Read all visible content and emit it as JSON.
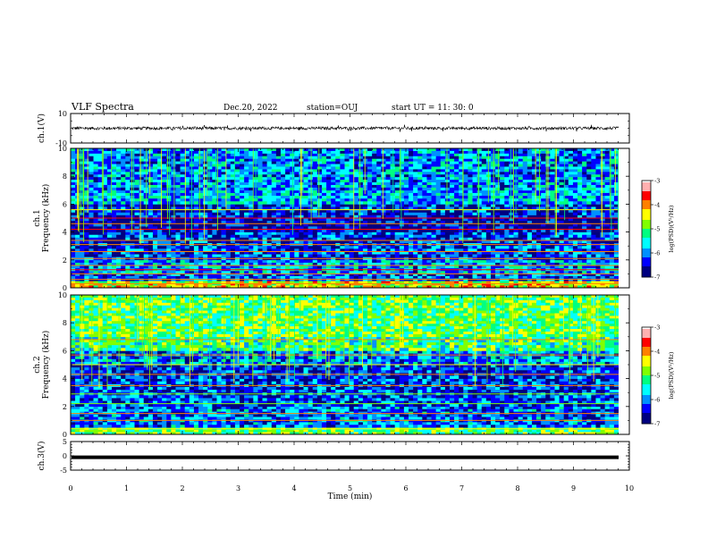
{
  "header": {
    "title": "VLF Spectra",
    "date": "Dec.20, 2022",
    "station": "station=OUJ",
    "start": "start  UT =   11: 30: 0"
  },
  "colors": {
    "colormap": [
      "#000080",
      "#0000ff",
      "#0090ff",
      "#00ffff",
      "#00ff80",
      "#80ff00",
      "#ffff00",
      "#ff8000",
      "#ff0000",
      "#ffb0b0",
      "#ffffff"
    ],
    "trace": "#000000"
  },
  "chart_data": [
    {
      "type": "line",
      "name": "ch1-waveform",
      "ylabel": "ch.1(V)",
      "ylim": [
        -10,
        10
      ],
      "yticks": [
        "10",
        "-10"
      ],
      "xlim": [
        0,
        10
      ],
      "trace_level_v": 0,
      "trace_amplitude_v": 1
    },
    {
      "type": "heatmap",
      "name": "ch1-spectrogram",
      "ylabel": "ch.1\nFrequency (kHz)",
      "ylim": [
        0,
        10
      ],
      "yticks": [
        "0",
        "2",
        "4",
        "6",
        "8",
        "10"
      ],
      "xlim": [
        0,
        10
      ],
      "colorbar": {
        "label": "log(PSD)(V²/Hz)",
        "range": [
          -7,
          -3
        ],
        "ticks": [
          "-3",
          "-4",
          "-5",
          "-6",
          "-7"
        ]
      },
      "band_levels_logpsd": [
        {
          "from_khz": 0,
          "to_khz": 0.5,
          "level": -4.5
        },
        {
          "from_khz": 0.5,
          "to_khz": 1.0,
          "level": -6.2
        },
        {
          "from_khz": 1.0,
          "to_khz": 2.0,
          "level": -5.9
        },
        {
          "from_khz": 2.0,
          "to_khz": 4.0,
          "level": -6.3
        },
        {
          "from_khz": 4.0,
          "to_khz": 5.0,
          "level": -6.7
        },
        {
          "from_khz": 5.0,
          "to_khz": 6.0,
          "level": -6.5
        },
        {
          "from_khz": 6.0,
          "to_khz": 7.0,
          "level": -5.8
        },
        {
          "from_khz": 7.0,
          "to_khz": 10.0,
          "level": -6.0
        }
      ],
      "stations_khz": [
        0.3,
        0.6,
        1.0,
        1.3,
        1.6,
        2.1,
        2.6,
        3.1,
        3.4,
        4.2,
        4.6,
        5.0,
        5.6
      ]
    },
    {
      "type": "heatmap",
      "name": "ch2-spectrogram",
      "ylabel": "ch.2\nFrequency (kHz)",
      "ylim": [
        0,
        10
      ],
      "yticks": [
        "0",
        "2",
        "4",
        "6",
        "8",
        "10"
      ],
      "xlim": [
        0,
        10
      ],
      "colorbar": {
        "label": "log(PSD)(V²/Hz)",
        "range": [
          -7,
          -3
        ],
        "ticks": [
          "-3",
          "-4",
          "-5",
          "-6",
          "-7"
        ]
      },
      "band_levels_logpsd": [
        {
          "from_khz": 0,
          "to_khz": 0.5,
          "level": -5.0
        },
        {
          "from_khz": 0.5,
          "to_khz": 2.0,
          "level": -6.1
        },
        {
          "from_khz": 2.0,
          "to_khz": 4.0,
          "level": -6.3
        },
        {
          "from_khz": 4.0,
          "to_khz": 5.0,
          "level": -6.4
        },
        {
          "from_khz": 5.0,
          "to_khz": 6.0,
          "level": -6.0
        },
        {
          "from_khz": 6.0,
          "to_khz": 7.0,
          "level": -5.2
        },
        {
          "from_khz": 7.0,
          "to_khz": 10.0,
          "level": -5.0
        }
      ],
      "stations_khz": [
        0.4,
        1.0,
        1.5,
        2.2,
        2.9,
        3.5,
        4.3,
        5.0,
        5.7,
        6.8
      ]
    },
    {
      "type": "line",
      "name": "ch3-waveform",
      "ylabel": "ch.3(V)",
      "ylim": [
        -5,
        5
      ],
      "yticks": [
        "5",
        "0",
        "-5"
      ],
      "xlim": [
        0,
        10
      ],
      "xlabel": "Time (min)",
      "xticks": [
        "0",
        "1",
        "2",
        "3",
        "4",
        "5",
        "6",
        "7",
        "8",
        "9",
        "10"
      ],
      "trace_level_v": -0.5
    }
  ]
}
